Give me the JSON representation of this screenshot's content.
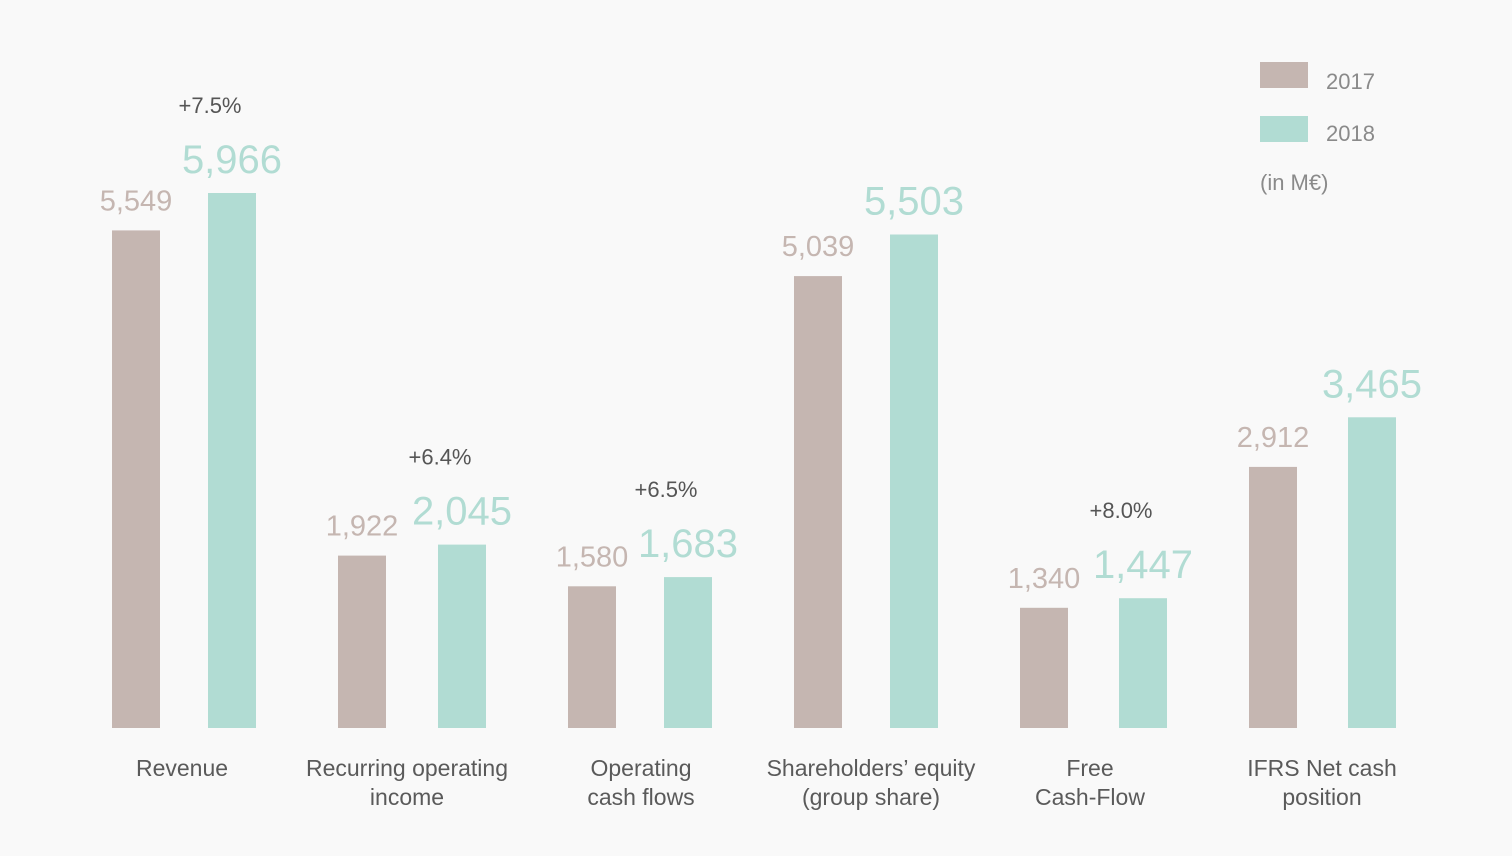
{
  "chart_data": {
    "type": "bar",
    "unit": "(in M€)",
    "categories": [
      [
        "Revenue"
      ],
      [
        "Recurring operating",
        "income"
      ],
      [
        "Operating",
        "cash flows"
      ],
      [
        "Shareholders’ equity",
        "(group share)"
      ],
      [
        "Free",
        "Cash-Flow"
      ],
      [
        "IFRS Net cash",
        "position"
      ]
    ],
    "series": [
      {
        "name": "2017",
        "color": "#c5b6b1",
        "values": [
          5549,
          1922,
          1580,
          5039,
          1340,
          2912
        ],
        "labels": [
          "5,549",
          "1,922",
          "1,580",
          "5,039",
          "1,340",
          "2,912"
        ]
      },
      {
        "name": "2018",
        "color": "#b1dcd3",
        "values": [
          5966,
          2045,
          1683,
          5503,
          1447,
          3465
        ],
        "labels": [
          "5,966",
          "2,045",
          "1,683",
          "5,503",
          "1,447",
          "3,465"
        ]
      }
    ],
    "annotations": [
      "+7.5%",
      "+6.4%",
      "+6.5%",
      "",
      "+8.0%",
      ""
    ]
  }
}
